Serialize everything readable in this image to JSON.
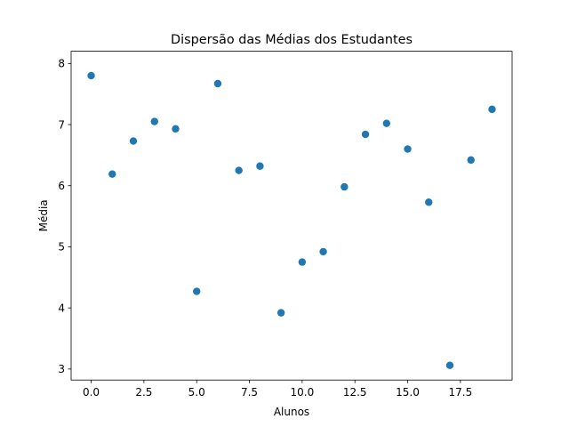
{
  "chart_data": {
    "type": "scatter",
    "title": "Dispersão das Médias dos Estudantes",
    "xlabel": "Alunos",
    "ylabel": "Média",
    "xlim": [
      -0.95,
      19.95
    ],
    "ylim": [
      2.82,
      8.2
    ],
    "xticks": [
      0.0,
      2.5,
      5.0,
      7.5,
      10.0,
      12.5,
      15.0,
      17.5
    ],
    "xtick_labels": [
      "0.0",
      "2.5",
      "5.0",
      "7.5",
      "10.0",
      "12.5",
      "15.0",
      "17.5"
    ],
    "yticks": [
      3,
      4,
      5,
      6,
      7,
      8
    ],
    "ytick_labels": [
      "3",
      "4",
      "5",
      "6",
      "7",
      "8"
    ],
    "grid": false,
    "color": "#1f77b4",
    "x": [
      0,
      1,
      2,
      3,
      4,
      5,
      6,
      7,
      8,
      9,
      10,
      11,
      12,
      13,
      14,
      15,
      16,
      17,
      18,
      19
    ],
    "y": [
      7.8,
      6.19,
      6.73,
      7.05,
      6.93,
      4.27,
      7.67,
      6.25,
      6.32,
      3.92,
      4.75,
      4.92,
      5.98,
      6.84,
      7.02,
      6.6,
      5.73,
      3.06,
      6.42,
      7.25
    ]
  }
}
